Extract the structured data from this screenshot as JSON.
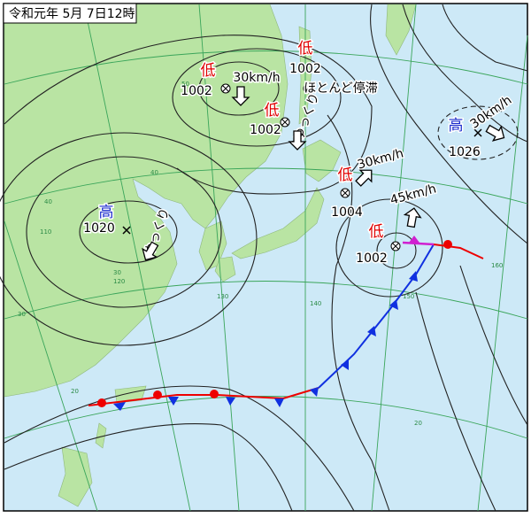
{
  "title": "令和元年 5月 7日12時",
  "systems": [
    {
      "kind": "低",
      "pressure": 1002,
      "motion": "30km/h"
    },
    {
      "kind": "低",
      "pressure": 1002,
      "motion": "ほとんど停滞"
    },
    {
      "kind": "低",
      "pressure": 1002,
      "motion": "ゆっくり"
    },
    {
      "kind": "低",
      "pressure": 1004,
      "motion": "30km/h"
    },
    {
      "kind": "低",
      "pressure": 1002,
      "motion": "45km/h"
    },
    {
      "kind": "高",
      "pressure": 1020,
      "motion": "ゆっくり"
    },
    {
      "kind": "高",
      "pressure": 1026,
      "motion": "30km/h"
    }
  ],
  "grid_labels": [
    "50",
    "40",
    "30",
    "20",
    "110",
    "120",
    "130",
    "140",
    "150",
    "160",
    "40",
    "30",
    "20"
  ]
}
